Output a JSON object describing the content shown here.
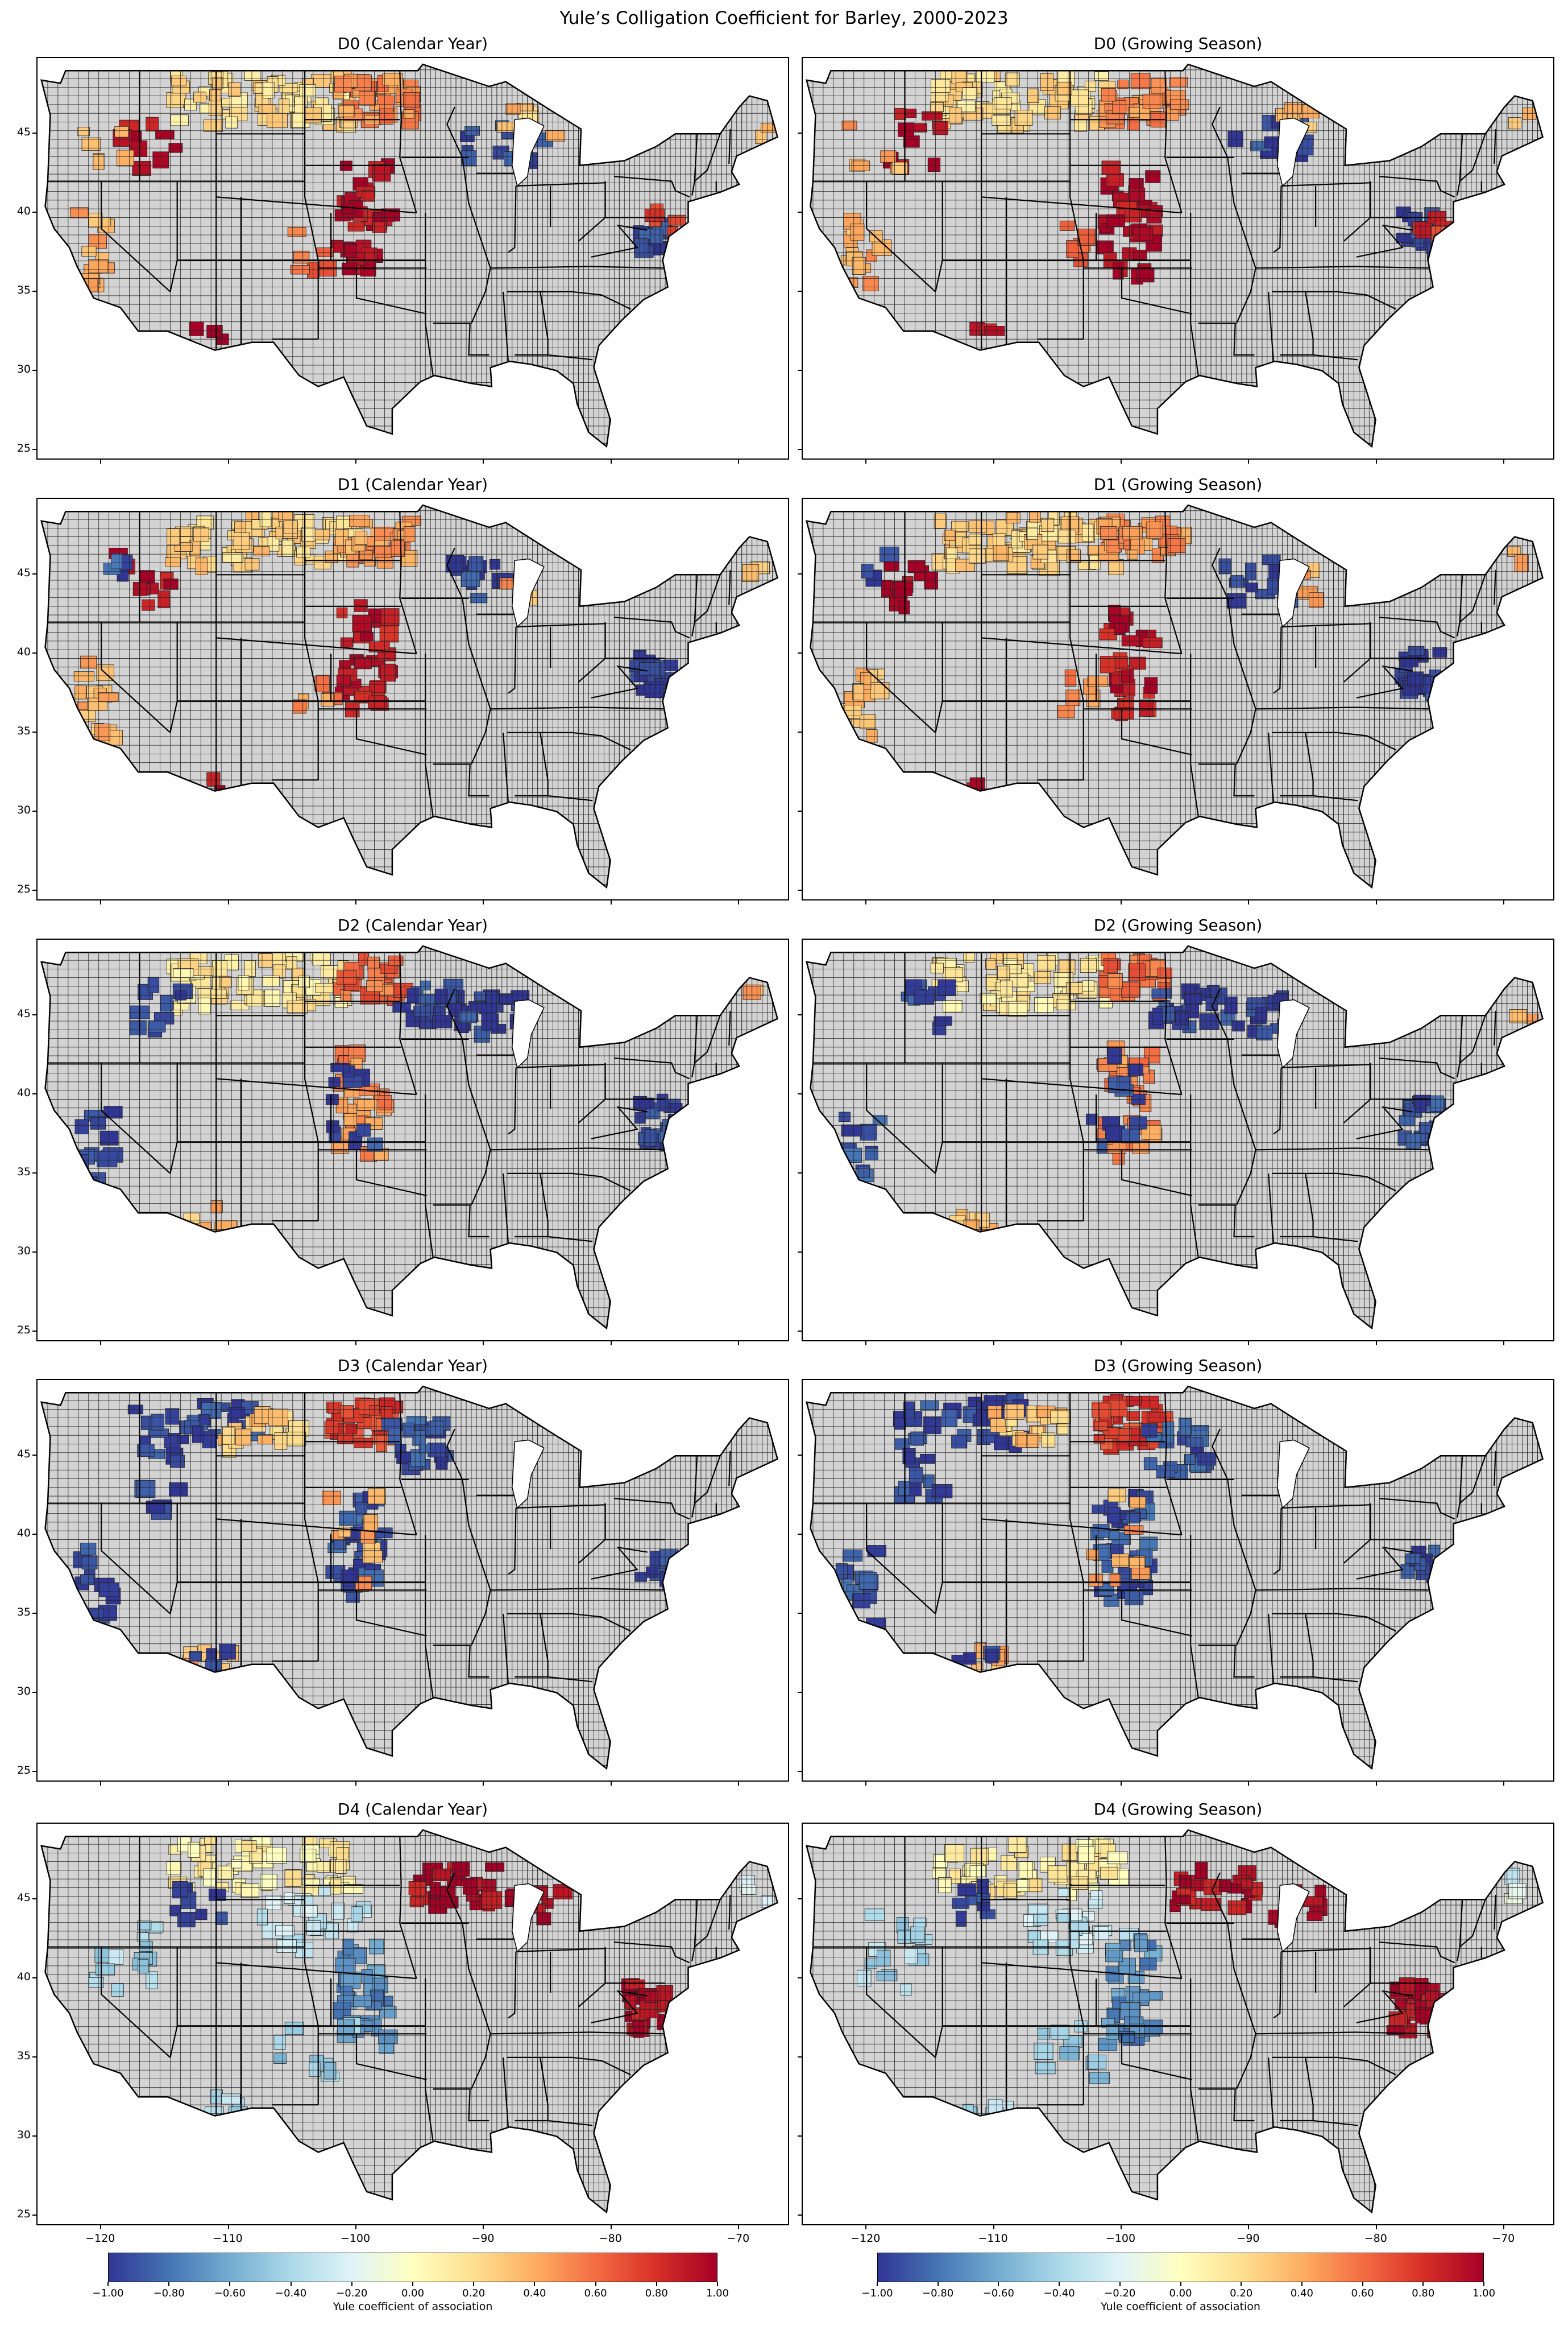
{
  "figure": {
    "title": "Yule’s Colligation Coefficient for Barley, 2000-2023"
  },
  "panels": [
    {
      "title": "D0 (Calendar Year)"
    },
    {
      "title": "D0 (Growing Season)"
    },
    {
      "title": "D1 (Calendar Year)"
    },
    {
      "title": "D1 (Growing Season)"
    },
    {
      "title": "D2 (Calendar Year)"
    },
    {
      "title": "D2 (Growing Season)"
    },
    {
      "title": "D3 (Calendar Year)"
    },
    {
      "title": "D3 (Growing Season)"
    },
    {
      "title": "D4 (Calendar Year)"
    },
    {
      "title": "D4 (Growing Season)"
    }
  ],
  "axes": {
    "x_ticks": [
      "−120",
      "−110",
      "−100",
      "−90",
      "−80",
      "−70"
    ],
    "y_ticks": [
      "45",
      "40",
      "35",
      "30",
      "25"
    ],
    "lon_range": [
      -125,
      -66
    ],
    "lat_range": [
      24.3,
      49.8
    ]
  },
  "colorbar": {
    "label": "Yule coefficient of association",
    "ticks": [
      "−1.00",
      "−0.80",
      "−0.60",
      "−0.40",
      "−0.20",
      "0.00",
      "0.20",
      "0.40",
      "0.60",
      "0.80",
      "1.00"
    ],
    "range": [
      -1,
      1
    ],
    "colormap": "RdYlBu_r",
    "stops": [
      "#313695",
      "#4575b4",
      "#74add1",
      "#abd9e9",
      "#e0f3f8",
      "#ffffbf",
      "#fee090",
      "#fdae61",
      "#f46d43",
      "#d73027",
      "#a50026"
    ]
  },
  "colors": {
    "no_data": "#d3d3d3",
    "border": "#000000"
  },
  "chart_data": {
    "type": "choropleth",
    "variable": "Yule coefficient of association",
    "region": "Contiguous United States, county level",
    "value_range": [
      -1,
      1
    ],
    "panels": [
      {
        "title": "D0 (Calendar Year)",
        "regions": [
          {
            "area": "Montana / North Dakota",
            "value": 0.2
          },
          {
            "area": "North Dakota east / Minnesota",
            "value": 0.5
          },
          {
            "area": "Idaho / Oregon",
            "value": 0.95
          },
          {
            "area": "Central Plains (Nebraska–Kansas–Colorado)",
            "value": 0.95
          },
          {
            "area": "Southern Arizona",
            "value": 0.95
          },
          {
            "area": "Mid-Atlantic (Virginia–Maryland–Pennsylvania)",
            "value": -0.95
          },
          {
            "area": "Great Lakes (Michigan–Wisconsin)",
            "value": -0.95
          }
        ]
      },
      {
        "title": "D0 (Growing Season)",
        "regions": [
          {
            "area": "Montana / North Dakota",
            "value": 0.2
          },
          {
            "area": "North Dakota east / Minnesota",
            "value": 0.5
          },
          {
            "area": "Idaho / Oregon",
            "value": 0.95
          },
          {
            "area": "Central Plains (Nebraska–Kansas–Colorado)",
            "value": 0.95
          },
          {
            "area": "Southern Arizona",
            "value": 0.95
          },
          {
            "area": "Mid-Atlantic (Virginia–Maryland–Pennsylvania)",
            "value": -0.95
          },
          {
            "area": "Great Lakes (Michigan–Wisconsin)",
            "value": -0.95
          }
        ]
      },
      {
        "title": "D1 (Calendar Year)",
        "regions": [
          {
            "area": "Montana / North Dakota",
            "value": 0.25
          },
          {
            "area": "North Dakota east / Minnesota",
            "value": 0.45
          },
          {
            "area": "Central Plains (Nebraska–Kansas–Colorado)",
            "value": 0.9
          },
          {
            "area": "Mid-Atlantic (Virginia–Maryland–Pennsylvania)",
            "value": -0.95
          },
          {
            "area": "Great Lakes (Michigan–Wisconsin)",
            "value": -0.95
          },
          {
            "area": "California",
            "value": 0.35
          }
        ]
      },
      {
        "title": "D1 (Growing Season)",
        "regions": [
          {
            "area": "Montana / North Dakota",
            "value": 0.25
          },
          {
            "area": "North Dakota east / Minnesota",
            "value": 0.45
          },
          {
            "area": "Central Plains (Nebraska–Kansas–Colorado)",
            "value": 0.9
          },
          {
            "area": "Mid-Atlantic (Virginia–Maryland–Pennsylvania)",
            "value": -0.95
          },
          {
            "area": "Great Lakes (Michigan–Wisconsin)",
            "value": -0.95
          },
          {
            "area": "California",
            "value": 0.35
          }
        ]
      },
      {
        "title": "D2 (Calendar Year)",
        "regions": [
          {
            "area": "Montana / North Dakota",
            "value": 0.15
          },
          {
            "area": "North Dakota east",
            "value": 0.6
          },
          {
            "area": "Minnesota / Wisconsin",
            "value": -0.95
          },
          {
            "area": "Central Plains (Nebraska–Kansas–Colorado)",
            "value": 0.5
          },
          {
            "area": "Mid-Atlantic (Virginia–Maryland–Pennsylvania)",
            "value": -0.95
          },
          {
            "area": "California",
            "value": -0.9
          }
        ]
      },
      {
        "title": "D2 (Growing Season)",
        "regions": [
          {
            "area": "Montana / North Dakota",
            "value": 0.15
          },
          {
            "area": "North Dakota east",
            "value": 0.6
          },
          {
            "area": "Minnesota / Wisconsin",
            "value": -0.95
          },
          {
            "area": "Central Plains (Nebraska–Kansas–Colorado)",
            "value": 0.5
          },
          {
            "area": "Mid-Atlantic (Virginia–Maryland–Pennsylvania)",
            "value": -0.95
          },
          {
            "area": "California",
            "value": -0.9
          }
        ]
      },
      {
        "title": "D3 (Calendar Year)",
        "regions": [
          {
            "area": "Montana / Idaho / Washington",
            "value": -0.95
          },
          {
            "area": "North Dakota",
            "value": 0.75
          },
          {
            "area": "Central Plains (Nebraska–Kansas–Colorado)",
            "value": -0.9
          },
          {
            "area": "Mid-Atlantic (Virginia–Maryland–Pennsylvania)",
            "value": -0.95
          },
          {
            "area": "California",
            "value": -0.9
          }
        ]
      },
      {
        "title": "D3 (Growing Season)",
        "regions": [
          {
            "area": "Montana / Idaho / Washington",
            "value": -0.95
          },
          {
            "area": "North Dakota",
            "value": 0.75
          },
          {
            "area": "Central Plains (Nebraska–Kansas–Colorado)",
            "value": -0.9
          },
          {
            "area": "Mid-Atlantic (Virginia–Maryland–Pennsylvania)",
            "value": -0.95
          },
          {
            "area": "California",
            "value": -0.9
          }
        ]
      },
      {
        "title": "D4 (Calendar Year)",
        "regions": [
          {
            "area": "Montana / North Dakota",
            "value": 0.1
          },
          {
            "area": "Colorado / Wyoming",
            "value": -0.3
          },
          {
            "area": "Central Plains (Nebraska–Kansas–Colorado)",
            "value": -0.7
          },
          {
            "area": "Minnesota / Wisconsin / Michigan",
            "value": 0.95
          },
          {
            "area": "Mid-Atlantic (Virginia–Maryland–Pennsylvania)",
            "value": 0.95
          },
          {
            "area": "Maine",
            "value": -0.2
          }
        ]
      },
      {
        "title": "D4 (Growing Season)",
        "regions": [
          {
            "area": "Montana / North Dakota",
            "value": 0.1
          },
          {
            "area": "Colorado / Wyoming",
            "value": -0.3
          },
          {
            "area": "Central Plains (Nebraska–Kansas–Colorado)",
            "value": -0.7
          },
          {
            "area": "Minnesota / Wisconsin / Michigan",
            "value": 0.95
          },
          {
            "area": "Mid-Atlantic (Virginia–Maryland–Pennsylvania)",
            "value": 0.95
          },
          {
            "area": "Maine",
            "value": -0.2
          }
        ]
      }
    ]
  }
}
